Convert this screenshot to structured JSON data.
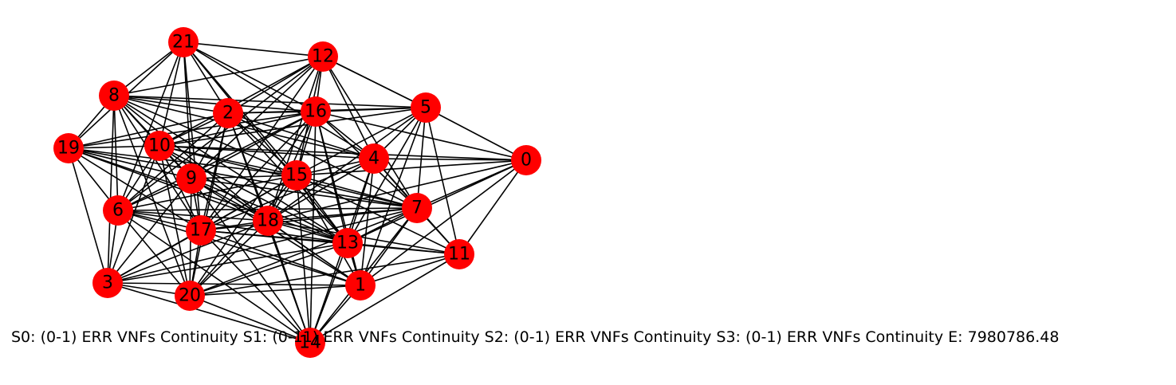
{
  "colors": {
    "node": "#ff0000",
    "edge": "#000000",
    "background": "#ffffff"
  },
  "graph": {
    "nodes": [
      "0",
      "1",
      "2",
      "3",
      "4",
      "5",
      "6",
      "7",
      "8",
      "9",
      "10",
      "11",
      "12",
      "13",
      "14",
      "15",
      "16",
      "17",
      "18",
      "19",
      "20",
      "21"
    ],
    "edges": [
      [
        "0",
        "5"
      ],
      [
        "0",
        "4"
      ],
      [
        "0",
        "15"
      ],
      [
        "0",
        "7"
      ],
      [
        "0",
        "11"
      ],
      [
        "0",
        "13"
      ],
      [
        "0",
        "1"
      ],
      [
        "0",
        "16"
      ],
      [
        "0",
        "18"
      ],
      [
        "0",
        "10"
      ],
      [
        "5",
        "16"
      ],
      [
        "5",
        "2"
      ],
      [
        "5",
        "8"
      ],
      [
        "5",
        "15"
      ],
      [
        "5",
        "4"
      ],
      [
        "5",
        "7"
      ],
      [
        "5",
        "13"
      ],
      [
        "5",
        "11"
      ],
      [
        "5",
        "1"
      ],
      [
        "5",
        "18"
      ],
      [
        "5",
        "10"
      ],
      [
        "5",
        "12"
      ],
      [
        "12",
        "21"
      ],
      [
        "12",
        "8"
      ],
      [
        "12",
        "2"
      ],
      [
        "12",
        "16"
      ],
      [
        "12",
        "10"
      ],
      [
        "12",
        "9"
      ],
      [
        "12",
        "15"
      ],
      [
        "12",
        "4"
      ],
      [
        "12",
        "7"
      ],
      [
        "12",
        "18"
      ],
      [
        "12",
        "6"
      ],
      [
        "12",
        "5"
      ],
      [
        "12",
        "17"
      ],
      [
        "21",
        "8"
      ],
      [
        "21",
        "2"
      ],
      [
        "21",
        "16"
      ],
      [
        "21",
        "10"
      ],
      [
        "21",
        "9"
      ],
      [
        "21",
        "19"
      ],
      [
        "21",
        "15"
      ],
      [
        "21",
        "13"
      ],
      [
        "21",
        "17"
      ],
      [
        "21",
        "6"
      ],
      [
        "21",
        "4"
      ],
      [
        "8",
        "2"
      ],
      [
        "8",
        "16"
      ],
      [
        "8",
        "19"
      ],
      [
        "8",
        "10"
      ],
      [
        "8",
        "9"
      ],
      [
        "8",
        "6"
      ],
      [
        "8",
        "3"
      ],
      [
        "8",
        "20"
      ],
      [
        "8",
        "17"
      ],
      [
        "8",
        "18"
      ],
      [
        "8",
        "15"
      ],
      [
        "8",
        "13"
      ],
      [
        "8",
        "4"
      ],
      [
        "19",
        "10"
      ],
      [
        "19",
        "9"
      ],
      [
        "19",
        "6"
      ],
      [
        "19",
        "3"
      ],
      [
        "19",
        "2"
      ],
      [
        "19",
        "16"
      ],
      [
        "19",
        "15"
      ],
      [
        "19",
        "17"
      ],
      [
        "19",
        "18"
      ],
      [
        "19",
        "7"
      ],
      [
        "19",
        "13"
      ],
      [
        "10",
        "9"
      ],
      [
        "10",
        "2"
      ],
      [
        "10",
        "6"
      ],
      [
        "10",
        "17"
      ],
      [
        "10",
        "20"
      ],
      [
        "10",
        "3"
      ],
      [
        "10",
        "15"
      ],
      [
        "10",
        "16"
      ],
      [
        "10",
        "18"
      ],
      [
        "10",
        "13"
      ],
      [
        "10",
        "4"
      ],
      [
        "10",
        "1"
      ],
      [
        "10",
        "7"
      ],
      [
        "2",
        "16"
      ],
      [
        "2",
        "9"
      ],
      [
        "2",
        "17"
      ],
      [
        "2",
        "6"
      ],
      [
        "2",
        "18"
      ],
      [
        "2",
        "15"
      ],
      [
        "2",
        "13"
      ],
      [
        "2",
        "4"
      ],
      [
        "2",
        "14"
      ],
      [
        "2",
        "20"
      ],
      [
        "2",
        "7"
      ],
      [
        "16",
        "9"
      ],
      [
        "16",
        "15"
      ],
      [
        "16",
        "4"
      ],
      [
        "16",
        "17"
      ],
      [
        "16",
        "18"
      ],
      [
        "16",
        "13"
      ],
      [
        "16",
        "1"
      ],
      [
        "16",
        "6"
      ],
      [
        "16",
        "20"
      ],
      [
        "16",
        "7"
      ],
      [
        "16",
        "14"
      ],
      [
        "9",
        "6"
      ],
      [
        "9",
        "17"
      ],
      [
        "9",
        "18"
      ],
      [
        "9",
        "15"
      ],
      [
        "9",
        "13"
      ],
      [
        "9",
        "1"
      ],
      [
        "9",
        "20"
      ],
      [
        "9",
        "3"
      ],
      [
        "9",
        "7"
      ],
      [
        "9",
        "14"
      ],
      [
        "15",
        "4"
      ],
      [
        "15",
        "7"
      ],
      [
        "15",
        "17"
      ],
      [
        "15",
        "18"
      ],
      [
        "15",
        "6"
      ],
      [
        "15",
        "13"
      ],
      [
        "15",
        "20"
      ],
      [
        "15",
        "14"
      ],
      [
        "15",
        "1"
      ],
      [
        "15",
        "3"
      ],
      [
        "15",
        "11"
      ],
      [
        "4",
        "7"
      ],
      [
        "4",
        "18"
      ],
      [
        "4",
        "13"
      ],
      [
        "4",
        "1"
      ],
      [
        "4",
        "11"
      ],
      [
        "4",
        "17"
      ],
      [
        "4",
        "14"
      ],
      [
        "7",
        "18"
      ],
      [
        "7",
        "17"
      ],
      [
        "7",
        "13"
      ],
      [
        "7",
        "11"
      ],
      [
        "7",
        "1"
      ],
      [
        "7",
        "6"
      ],
      [
        "7",
        "14"
      ],
      [
        "7",
        "20"
      ],
      [
        "7",
        "3"
      ],
      [
        "6",
        "17"
      ],
      [
        "6",
        "18"
      ],
      [
        "6",
        "3"
      ],
      [
        "6",
        "20"
      ],
      [
        "6",
        "13"
      ],
      [
        "6",
        "1"
      ],
      [
        "6",
        "14"
      ],
      [
        "17",
        "18"
      ],
      [
        "17",
        "13"
      ],
      [
        "17",
        "20"
      ],
      [
        "17",
        "3"
      ],
      [
        "17",
        "1"
      ],
      [
        "17",
        "14"
      ],
      [
        "17",
        "11"
      ],
      [
        "18",
        "13"
      ],
      [
        "18",
        "1"
      ],
      [
        "18",
        "20"
      ],
      [
        "18",
        "3"
      ],
      [
        "18",
        "14"
      ],
      [
        "18",
        "11"
      ],
      [
        "13",
        "1"
      ],
      [
        "13",
        "11"
      ],
      [
        "13",
        "14"
      ],
      [
        "13",
        "20"
      ],
      [
        "13",
        "3"
      ],
      [
        "11",
        "1"
      ],
      [
        "11",
        "14"
      ],
      [
        "11",
        "20"
      ],
      [
        "3",
        "20"
      ],
      [
        "3",
        "1"
      ],
      [
        "3",
        "14"
      ],
      [
        "20",
        "1"
      ],
      [
        "20",
        "14"
      ],
      [
        "1",
        "14"
      ]
    ]
  },
  "caption": "S0: (0-1) ERR VNFs Continuity S1: (0-11) ERR VNFs Continuity S2: (0-1) ERR VNFs Continuity S3: (0-1) ERR VNFs Continuity  E: 7980786.48"
}
